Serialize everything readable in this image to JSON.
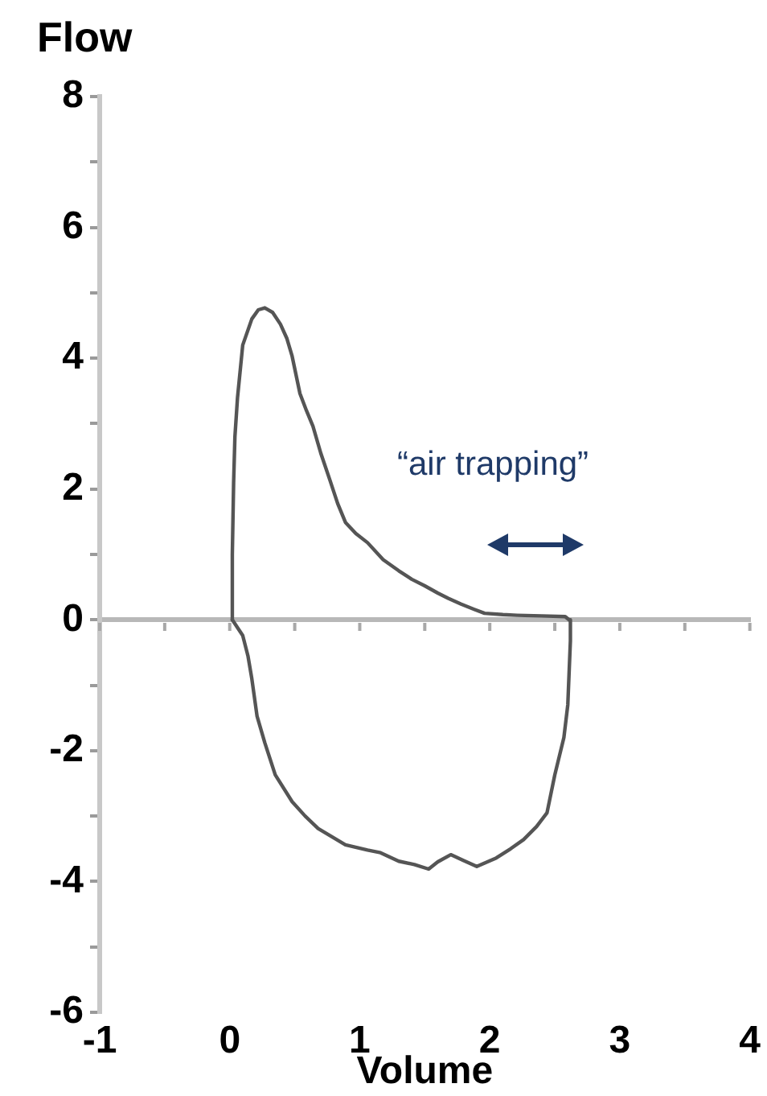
{
  "chart_data": {
    "type": "line",
    "xlabel": "Volume",
    "ylabel": "Flow",
    "annotations": [
      "“air trapping”"
    ],
    "xlim": [
      -1,
      4
    ],
    "xticks": [
      -1,
      {
        "value": -0.5,
        "label": null
      },
      0,
      {
        "value": 0.5,
        "label": null
      },
      1,
      {
        "value": 1.5,
        "label": null
      },
      2,
      {
        "value": 2.5,
        "label": null
      },
      3,
      {
        "value": 3.5,
        "label": null
      },
      4
    ],
    "ylim": [
      -6,
      8
    ],
    "yticks": [
      -6,
      {
        "value": -5,
        "label": null
      },
      -4,
      {
        "value": -3,
        "label": null
      },
      -2,
      {
        "value": -1,
        "label": null
      },
      0,
      {
        "value": 1,
        "label": null
      },
      2,
      {
        "value": 3,
        "label": null
      },
      4,
      {
        "value": 5,
        "label": null
      },
      6,
      {
        "value": 7,
        "label": null
      },
      8
    ],
    "ref_lines": [
      {
        "axis": "y",
        "value": 0,
        "color": "#b8b8b8"
      }
    ],
    "marker": "none",
    "line_style": "solid",
    "series": [
      {
        "color": "#555555",
        "x": [
          0.02,
          0.02,
          0.03,
          0.04,
          0.06,
          0.1,
          0.17,
          0.22,
          0.27,
          0.33,
          0.39,
          0.44,
          0.48,
          0.54,
          0.59,
          0.64,
          0.7,
          0.77,
          0.83,
          0.89,
          0.97,
          1.06,
          1.18,
          1.3,
          1.4,
          1.5,
          1.6,
          1.68,
          1.78,
          1.88,
          1.96,
          2.1,
          2.21,
          2.4,
          2.58,
          2.61
        ],
        "values": [
          0,
          1.0,
          2.1,
          2.8,
          3.4,
          4.2,
          4.6,
          4.74,
          4.77,
          4.7,
          4.52,
          4.3,
          4.03,
          3.46,
          3.2,
          2.96,
          2.55,
          2.14,
          1.78,
          1.49,
          1.32,
          1.18,
          0.92,
          0.75,
          0.62,
          0.52,
          0.41,
          0.33,
          0.24,
          0.16,
          0.1,
          0.08,
          0.07,
          0.06,
          0.05,
          0
        ]
      },
      {
        "color": "#555555",
        "x": [
          0.02,
          0.1,
          0.14,
          0.17,
          0.21,
          0.27,
          0.35,
          0.48,
          0.58,
          0.68,
          0.89,
          1.06,
          1.16,
          1.3,
          1.42,
          1.53,
          1.6,
          1.7,
          1.8,
          1.9,
          2.05,
          2.16,
          2.26,
          2.36,
          2.44,
          2.5,
          2.57,
          2.6,
          2.62,
          2.62
        ],
        "values": [
          0,
          -0.24,
          -0.55,
          -0.9,
          -1.47,
          -1.88,
          -2.37,
          -2.78,
          -3.0,
          -3.19,
          -3.44,
          -3.52,
          -3.56,
          -3.69,
          -3.74,
          -3.81,
          -3.7,
          -3.59,
          -3.68,
          -3.77,
          -3.64,
          -3.5,
          -3.36,
          -3.16,
          -2.95,
          -2.37,
          -1.8,
          -1.3,
          -0.32,
          0
        ]
      }
    ]
  }
}
